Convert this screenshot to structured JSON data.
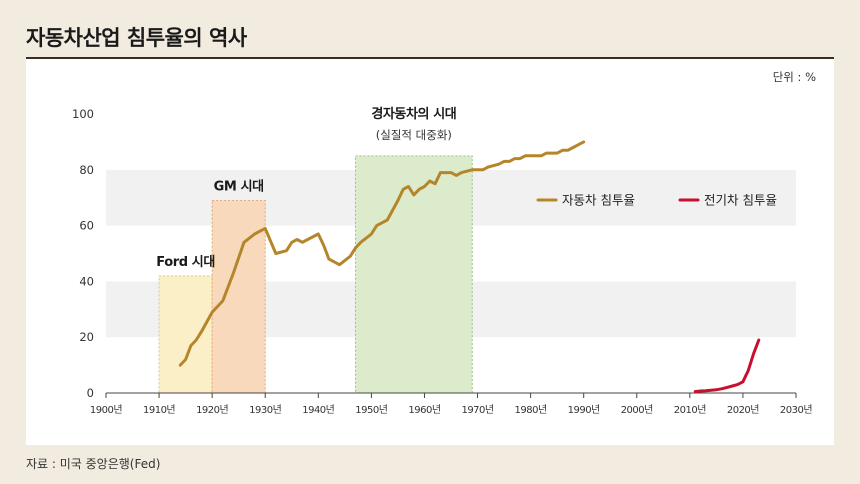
{
  "title": "자동차산업 침투율의 역사",
  "source": "자료 : 미국 중앙은행(Fed)",
  "chart_data": {
    "type": "line",
    "unit_label": "단위 : %",
    "ylim": [
      0,
      100
    ],
    "y_ticks": [
      0,
      20,
      40,
      60,
      80,
      100
    ],
    "xlim": [
      1900,
      2030
    ],
    "x_ticks": [
      1900,
      1910,
      1920,
      1930,
      1940,
      1950,
      1960,
      1970,
      1980,
      1990,
      2000,
      2010,
      2020,
      2030
    ],
    "x_tick_labels": [
      "1900년",
      "1910년",
      "1920년",
      "1930년",
      "1940년",
      "1950년",
      "1960년",
      "1970년",
      "1980년",
      "1990년",
      "2000년",
      "2010년",
      "2020년",
      "2030년"
    ],
    "grid": "horizontal-bands",
    "legend_position": "right",
    "eras": [
      {
        "label": "Ford 시대",
        "sublabel": "",
        "x_start": 1910,
        "x_end": 1920,
        "y_top": 42,
        "fill": "#fbefc8",
        "stroke": "#e3c977"
      },
      {
        "label": "GM 시대",
        "sublabel": "",
        "x_start": 1920,
        "x_end": 1930,
        "y_top": 69,
        "fill": "#f8d9bb",
        "stroke": "#e2a576"
      },
      {
        "label": "경자동차의 시대",
        "sublabel": "(실질적 대중화)",
        "x_start": 1947,
        "x_end": 1969,
        "y_top": 85,
        "fill": "#dbebcc",
        "stroke": "#97c47e"
      }
    ],
    "series": [
      {
        "name": "자동차 침투율",
        "color": "#b5852a",
        "x": [
          1914,
          1915,
          1916,
          1917,
          1918,
          1920,
          1922,
          1924,
          1926,
          1928,
          1929,
          1930,
          1932,
          1934,
          1935,
          1936,
          1937,
          1938,
          1940,
          1941,
          1942,
          1944,
          1946,
          1947,
          1948,
          1950,
          1951,
          1953,
          1955,
          1956,
          1957,
          1958,
          1959,
          1960,
          1961,
          1962,
          1963,
          1964,
          1965,
          1966,
          1967,
          1969,
          1971,
          1972,
          1974,
          1975,
          1976,
          1977,
          1978,
          1979,
          1980,
          1981,
          1982,
          1983,
          1984,
          1985,
          1986,
          1987,
          1988,
          1989,
          1990
        ],
        "y": [
          10,
          12,
          17,
          19,
          22,
          29,
          33,
          43,
          54,
          57,
          58,
          59,
          50,
          51,
          54,
          55,
          54,
          55,
          57,
          53,
          48,
          46,
          49,
          52,
          54,
          57,
          60,
          62,
          69,
          73,
          74,
          71,
          73,
          74,
          76,
          75,
          79,
          79,
          79,
          78,
          79,
          80,
          80,
          81,
          82,
          83,
          83,
          84,
          84,
          85,
          85,
          85,
          85,
          86,
          86,
          86,
          87,
          87,
          88,
          89,
          90
        ]
      },
      {
        "name": "전기차 침투율",
        "color": "#c8102e",
        "x": [
          2011,
          2012,
          2013,
          2014,
          2015,
          2016,
          2017,
          2018,
          2019,
          2020,
          2021,
          2022,
          2023
        ],
        "y": [
          0.5,
          0.7,
          0.8,
          1.0,
          1.2,
          1.5,
          2.0,
          2.5,
          3.0,
          4.0,
          8.0,
          14.0,
          19.0
        ]
      }
    ]
  }
}
